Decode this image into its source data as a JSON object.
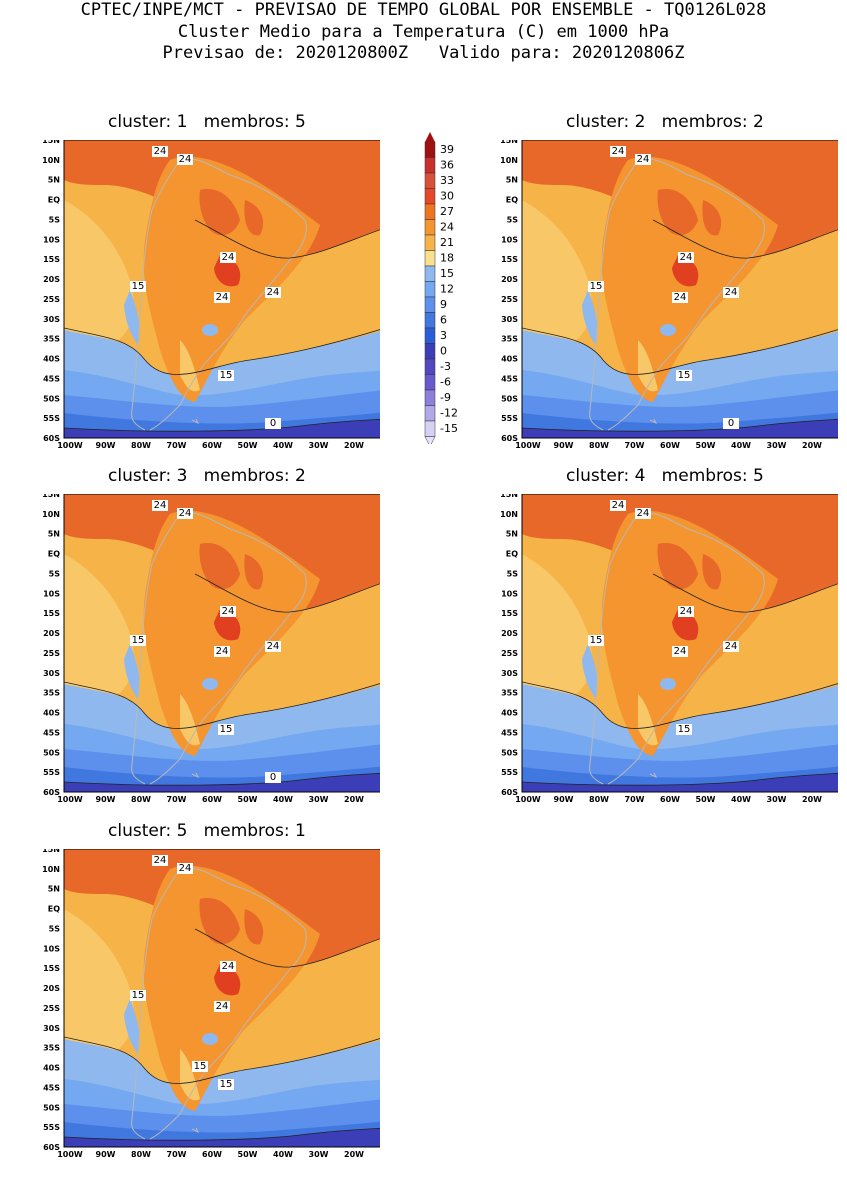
{
  "header": {
    "line1": "CPTEC/INPE/MCT - PREVISAO DE TEMPO GLOBAL POR ENSEMBLE - TQ0126L028",
    "line2": "Cluster Medio para a Temperatura (C) em 1000 hPa",
    "line3": "Previsao de: 2020120800Z   Valido para: 2020120806Z"
  },
  "axes": {
    "lat_labels": [
      "15N",
      "10N",
      "5N",
      "EQ",
      "5S",
      "10S",
      "15S",
      "20S",
      "25S",
      "30S",
      "35S",
      "40S",
      "45S",
      "50S",
      "55S",
      "60S"
    ],
    "lon_labels": [
      "100W",
      "90W",
      "80W",
      "70W",
      "60W",
      "50W",
      "40W",
      "30W",
      "20W"
    ]
  },
  "legend": {
    "levels": [
      "39",
      "36",
      "33",
      "30",
      "27",
      "24",
      "21",
      "18",
      "15",
      "12",
      "9",
      "6",
      "3",
      "0",
      "-3",
      "-6",
      "-9",
      "-12",
      "-15"
    ],
    "colors": [
      "#a01010",
      "#c83030",
      "#d85038",
      "#e8482a",
      "#f0741e",
      "#f59530",
      "#f6b448",
      "#fbe08e",
      "#8fb8ee",
      "#74a8f0",
      "#5c90ec",
      "#4078e0",
      "#2a5ed8",
      "#3c3eb8",
      "#5448c0",
      "#6a5ad0",
      "#8c80dc",
      "#b0a8e8",
      "#d6d2f4"
    ]
  },
  "panels": [
    {
      "title": "cluster: 1   membros: 5",
      "labels": {
        "a": "24",
        "b": "24",
        "c": "24",
        "d": "24",
        "e": "24",
        "f": "15",
        "g": "15",
        "h": "0"
      }
    },
    {
      "title": "cluster: 2   membros: 2",
      "labels": {
        "a": "24",
        "b": "24",
        "c": "24",
        "d": "24",
        "e": "24",
        "f": "15",
        "g": "15",
        "h": "0"
      }
    },
    {
      "title": "cluster: 3   membros: 2",
      "labels": {
        "a": "24",
        "b": "24",
        "c": "24",
        "d": "24",
        "e": "24",
        "f": "15",
        "g": "15",
        "h": "0"
      }
    },
    {
      "title": "cluster: 4   membros: 5",
      "labels": {
        "a": "24",
        "b": "24",
        "c": "24",
        "d": "24",
        "e": "24",
        "f": "15",
        "g": "15"
      }
    },
    {
      "title": "cluster: 5   membros: 1",
      "labels": {
        "a": "24",
        "b": "24",
        "c": "24",
        "d": "24",
        "f": "15",
        "g": "15",
        "i": "15"
      }
    }
  ]
}
